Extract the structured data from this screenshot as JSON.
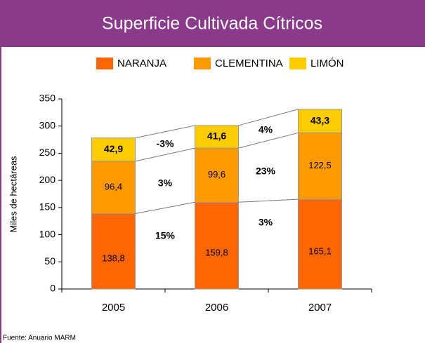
{
  "chart_data": {
    "type": "bar",
    "stacked": true,
    "title": "Superficie Cultivada Cítricos",
    "y_label": "Miles de hectáreas",
    "source": "Fuente: Anuario MARM",
    "categories": [
      "2005",
      "2006",
      "2007"
    ],
    "series": [
      {
        "name": "NARANJA",
        "color": "#ff6600",
        "values": [
          138.8,
          159.8,
          165.1
        ],
        "value_labels": [
          "138,8",
          "159,8",
          "165,1"
        ]
      },
      {
        "name": "CLEMENTINA",
        "color": "#ff9900",
        "values": [
          96.4,
          99.6,
          122.5
        ],
        "value_labels": [
          "96,4",
          "99,6",
          "122,5"
        ]
      },
      {
        "name": "LIMÓN",
        "color": "#ffcc00",
        "values": [
          42.9,
          41.6,
          43.3
        ],
        "value_labels": [
          "42,9",
          "41,6",
          "43,3"
        ]
      }
    ],
    "annotations": [
      "-3%",
      "3%",
      "15%",
      "4%",
      "23%",
      "3%"
    ],
    "ylim": [
      0,
      350
    ],
    "yticks": [
      0,
      50,
      100,
      150,
      200,
      250,
      300,
      350
    ],
    "legend": "top"
  }
}
